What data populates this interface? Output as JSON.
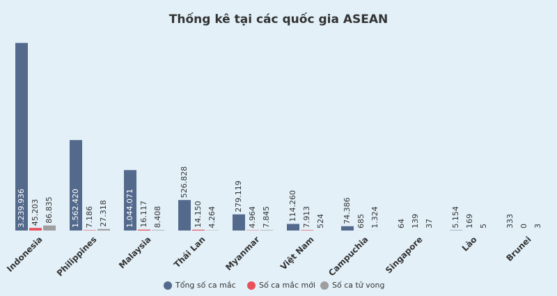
{
  "chart_data": {
    "type": "bar",
    "title": "Thống kê tại các quốc gia ASEAN",
    "categories": [
      "Indonesia",
      "Philippines",
      "Malaysia",
      "Thái Lan",
      "Myanmar",
      "Việt Nam",
      "Campuchia",
      "Singapore",
      "Lào",
      "Brunei"
    ],
    "series": [
      {
        "name": "Tổng số ca mắc",
        "color": "#546a8c",
        "values": [
          3239936,
          1562420,
          1044071,
          526828,
          279119,
          114260,
          74386,
          64,
          5154,
          333
        ],
        "value_labels": [
          "3.239.936",
          "1.562.420",
          "1.044.071",
          "526.828",
          "279.119",
          "114.260",
          "74.386",
          "64",
          "5.154",
          "333"
        ]
      },
      {
        "name": "Số ca mắc mới",
        "color": "#e8505b",
        "values": [
          45203,
          7186,
          16117,
          14150,
          4964,
          7913,
          685,
          139,
          169,
          0
        ],
        "value_labels": [
          "45.203",
          "7.186",
          "16.117",
          "14.150",
          "4.964",
          "7.913",
          "685",
          "139",
          "169",
          "0"
        ]
      },
      {
        "name": "Số ca tử vong",
        "color": "#9e9e9e",
        "values": [
          86835,
          27318,
          8408,
          4264,
          7845,
          524,
          1324,
          37,
          5,
          3
        ],
        "value_labels": [
          "86.835",
          "27.318",
          "8.408",
          "4.264",
          "7.845",
          "524",
          "1.324",
          "37",
          "5",
          "3"
        ]
      }
    ],
    "ylim": [
      0,
      3500000
    ],
    "grid": false,
    "legend": "bottom"
  }
}
